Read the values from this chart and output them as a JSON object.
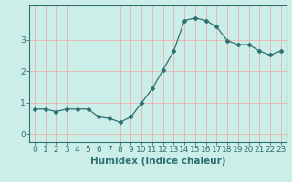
{
  "x": [
    0,
    1,
    2,
    3,
    4,
    5,
    6,
    7,
    8,
    9,
    10,
    11,
    12,
    13,
    14,
    15,
    16,
    17,
    18,
    19,
    20,
    21,
    22,
    23
  ],
  "y": [
    0.8,
    0.8,
    0.72,
    0.8,
    0.8,
    0.8,
    0.55,
    0.5,
    0.38,
    0.55,
    1.0,
    1.45,
    2.05,
    2.65,
    3.62,
    3.7,
    3.62,
    3.42,
    2.98,
    2.85,
    2.85,
    2.65,
    2.52,
    2.65
  ],
  "line_color": "#2d7070",
  "marker": "D",
  "marker_size": 2.5,
  "bg_color": "#cceee8",
  "grid_color": "#e8b8b8",
  "xlabel": "Humidex (Indice chaleur)",
  "ylim": [
    -0.25,
    4.1
  ],
  "xlim": [
    -0.5,
    23.5
  ],
  "yticks": [
    0,
    1,
    2,
    3
  ],
  "xticks": [
    0,
    1,
    2,
    3,
    4,
    5,
    6,
    7,
    8,
    9,
    10,
    11,
    12,
    13,
    14,
    15,
    16,
    17,
    18,
    19,
    20,
    21,
    22,
    23
  ],
  "xlabel_fontsize": 7.5,
  "tick_fontsize": 6.5
}
